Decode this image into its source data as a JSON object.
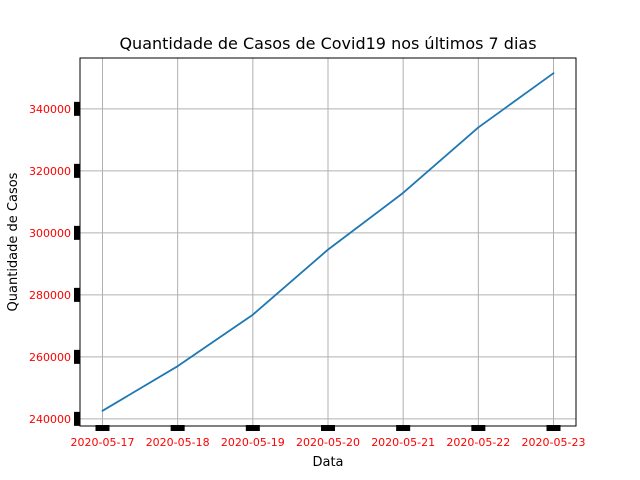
{
  "chart_data": {
    "type": "line",
    "title": "Quantidade de Casos de Covid19 nos últimos 7 dias",
    "xlabel": "Data",
    "ylabel": "Quantidade de Casos",
    "x": [
      "2020-05-17",
      "2020-05-18",
      "2020-05-19",
      "2020-05-20",
      "2020-05-21",
      "2020-05-22",
      "2020-05-23"
    ],
    "series": [
      {
        "values": [
          242600,
          257000,
          273600,
          294600,
          312900,
          334000,
          351500
        ]
      }
    ],
    "y_ticks": [
      240000,
      260000,
      280000,
      300000,
      320000,
      340000
    ],
    "y_tick_labels": [
      "240000",
      "260000",
      "280000",
      "300000",
      "320000",
      "340000"
    ],
    "ylim": [
      237700,
      356400
    ],
    "grid": true,
    "line_color": "#1f77b4",
    "tick_label_color": "#ff0000",
    "tick_mark_color": "#000000",
    "grid_color": "#b0b0b0"
  }
}
